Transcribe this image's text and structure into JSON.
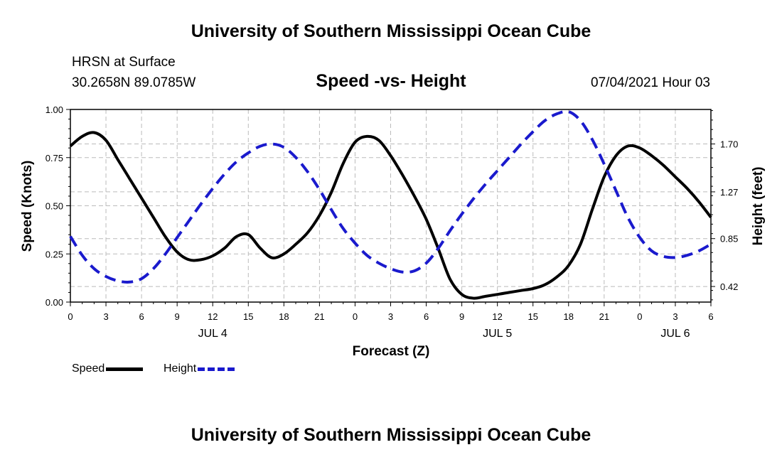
{
  "page": {
    "top_title": "University of Southern Mississippi Ocean Cube",
    "bottom_title": "University of Southern Mississippi Ocean Cube",
    "station_name": "HRSN at Surface",
    "station_coords": "30.2658N  89.0785W",
    "date": "07/04/2021 Hour 03"
  },
  "colors": {
    "speed": "#000000",
    "height": "#1a1acd",
    "grid": "#bbbbbb"
  },
  "chart_data": {
    "type": "line",
    "title": "Speed -vs- Height",
    "xlabel": "Forecast (Z)",
    "ylabel": "Speed (Knots)",
    "y2label": "Height (feet)",
    "xlim": [
      0,
      54
    ],
    "ylim": [
      0,
      1.0
    ],
    "y2lim": [
      0.28,
      2.01
    ],
    "x_ticks": [
      0,
      3,
      6,
      9,
      12,
      15,
      18,
      21,
      24,
      27,
      30,
      33,
      36,
      39,
      42,
      45,
      48,
      51,
      54
    ],
    "x_tick_labels": [
      "0",
      "3",
      "6",
      "9",
      "12",
      "15",
      "18",
      "21",
      "0",
      "3",
      "6",
      "9",
      "12",
      "15",
      "18",
      "21",
      "0",
      "3",
      "6"
    ],
    "y_ticks": [
      0.0,
      0.25,
      0.5,
      0.75,
      1.0
    ],
    "y_tick_labels": [
      "0.00",
      "0.25",
      "0.50",
      "0.75",
      "1.00"
    ],
    "y2_ticks": [
      0.42,
      0.85,
      1.27,
      1.7
    ],
    "y2_tick_labels": [
      "0.42",
      "0.85",
      "1.27",
      "1.70"
    ],
    "date_labels": [
      {
        "x": 12,
        "label": "JUL 4"
      },
      {
        "x": 36,
        "label": "JUL 5"
      },
      {
        "x": 51,
        "label": "JUL 6"
      }
    ],
    "grid": true,
    "legend": "bottom-left",
    "series": [
      {
        "name": "Speed",
        "axis": "left",
        "style": "solid",
        "x": [
          0,
          1,
          2,
          3,
          4,
          5,
          6,
          7,
          8,
          9,
          10,
          11,
          12,
          13,
          14,
          15,
          16,
          17,
          18,
          19,
          20,
          21,
          22,
          23,
          24,
          25,
          26,
          27,
          28,
          29,
          30,
          31,
          32,
          33,
          34,
          35,
          36,
          37,
          38,
          39,
          40,
          41,
          42,
          43,
          44,
          45,
          46,
          47,
          48,
          49,
          50,
          51,
          52,
          53,
          54
        ],
        "values": [
          0.81,
          0.86,
          0.88,
          0.84,
          0.74,
          0.64,
          0.54,
          0.44,
          0.34,
          0.26,
          0.22,
          0.22,
          0.24,
          0.28,
          0.34,
          0.35,
          0.28,
          0.23,
          0.25,
          0.3,
          0.36,
          0.45,
          0.57,
          0.72,
          0.83,
          0.86,
          0.84,
          0.76,
          0.66,
          0.55,
          0.43,
          0.28,
          0.12,
          0.04,
          0.02,
          0.03,
          0.04,
          0.05,
          0.06,
          0.07,
          0.09,
          0.13,
          0.19,
          0.3,
          0.48,
          0.65,
          0.76,
          0.81,
          0.8,
          0.76,
          0.71,
          0.65,
          0.59,
          0.52,
          0.44
        ]
      },
      {
        "name": "Height",
        "axis": "right",
        "style": "dashed",
        "x": [
          0,
          1,
          2,
          3,
          4,
          5,
          6,
          7,
          8,
          9,
          10,
          11,
          12,
          13,
          14,
          15,
          16,
          17,
          18,
          19,
          20,
          21,
          22,
          23,
          24,
          25,
          26,
          27,
          28,
          29,
          30,
          31,
          32,
          33,
          34,
          35,
          36,
          37,
          38,
          39,
          40,
          41,
          42,
          43,
          44,
          45,
          46,
          47,
          48,
          49,
          50,
          51,
          52,
          53,
          54
        ],
        "values": [
          0.87,
          0.7,
          0.58,
          0.51,
          0.47,
          0.46,
          0.49,
          0.58,
          0.71,
          0.86,
          1.01,
          1.16,
          1.3,
          1.43,
          1.54,
          1.62,
          1.68,
          1.7,
          1.67,
          1.58,
          1.45,
          1.29,
          1.11,
          0.94,
          0.81,
          0.7,
          0.63,
          0.58,
          0.55,
          0.56,
          0.63,
          0.76,
          0.92,
          1.07,
          1.21,
          1.34,
          1.46,
          1.58,
          1.7,
          1.81,
          1.91,
          1.97,
          1.99,
          1.91,
          1.74,
          1.52,
          1.28,
          1.04,
          0.86,
          0.74,
          0.69,
          0.68,
          0.7,
          0.74,
          0.8
        ]
      }
    ]
  },
  "legend": {
    "speed_label": "Speed",
    "height_label": "Height"
  }
}
